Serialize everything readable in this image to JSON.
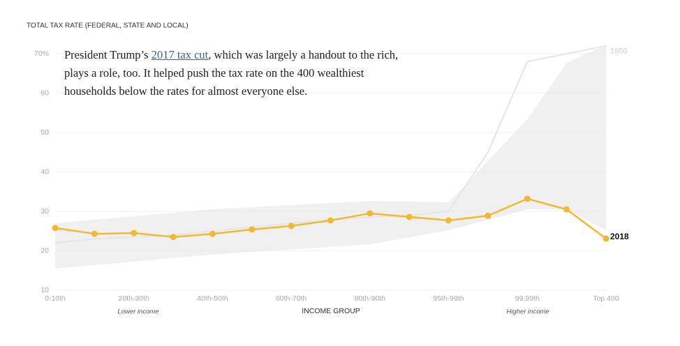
{
  "chart_data": {
    "type": "line",
    "ylabel": "TOTAL TAX RATE (FEDERAL, STATE AND LOCAL)",
    "xlabel": "INCOME GROUP",
    "lower_label": "Lower income",
    "higher_label": "Higher income",
    "annotation": {
      "before": "President Trump’s ",
      "link": "2017 tax cut",
      "after": ", which was largely a handout to the rich, plays a role, too. It helped push the tax rate on the 400 wealthiest households below the rates for almost everyone else."
    },
    "categories": [
      "0-10th",
      null,
      "20th-30th",
      null,
      "40th-50th",
      null,
      "60th-70th",
      null,
      "80th-90th",
      null,
      "95th-99th",
      null,
      "99.99th",
      null,
      "Top 400"
    ],
    "ylim": [
      10,
      72
    ],
    "yticks": [
      {
        "value": 70,
        "label": "70%"
      },
      60,
      50,
      40,
      30,
      20,
      10
    ],
    "grid": true,
    "series": [
      {
        "name": "1950",
        "color": "#e6e6e6",
        "values": [
          22,
          23,
          23.5,
          24,
          25,
          26,
          27,
          28,
          28.5,
          29,
          30,
          45,
          68,
          70,
          72
        ]
      },
      {
        "name": "2018",
        "color": "#f2b82f",
        "values": [
          25.8,
          24.3,
          24.5,
          23.5,
          24.3,
          25.4,
          26.3,
          27.7,
          29.5,
          28.6,
          27.7,
          28.9,
          33.2,
          30.5,
          23.1
        ]
      }
    ]
  }
}
